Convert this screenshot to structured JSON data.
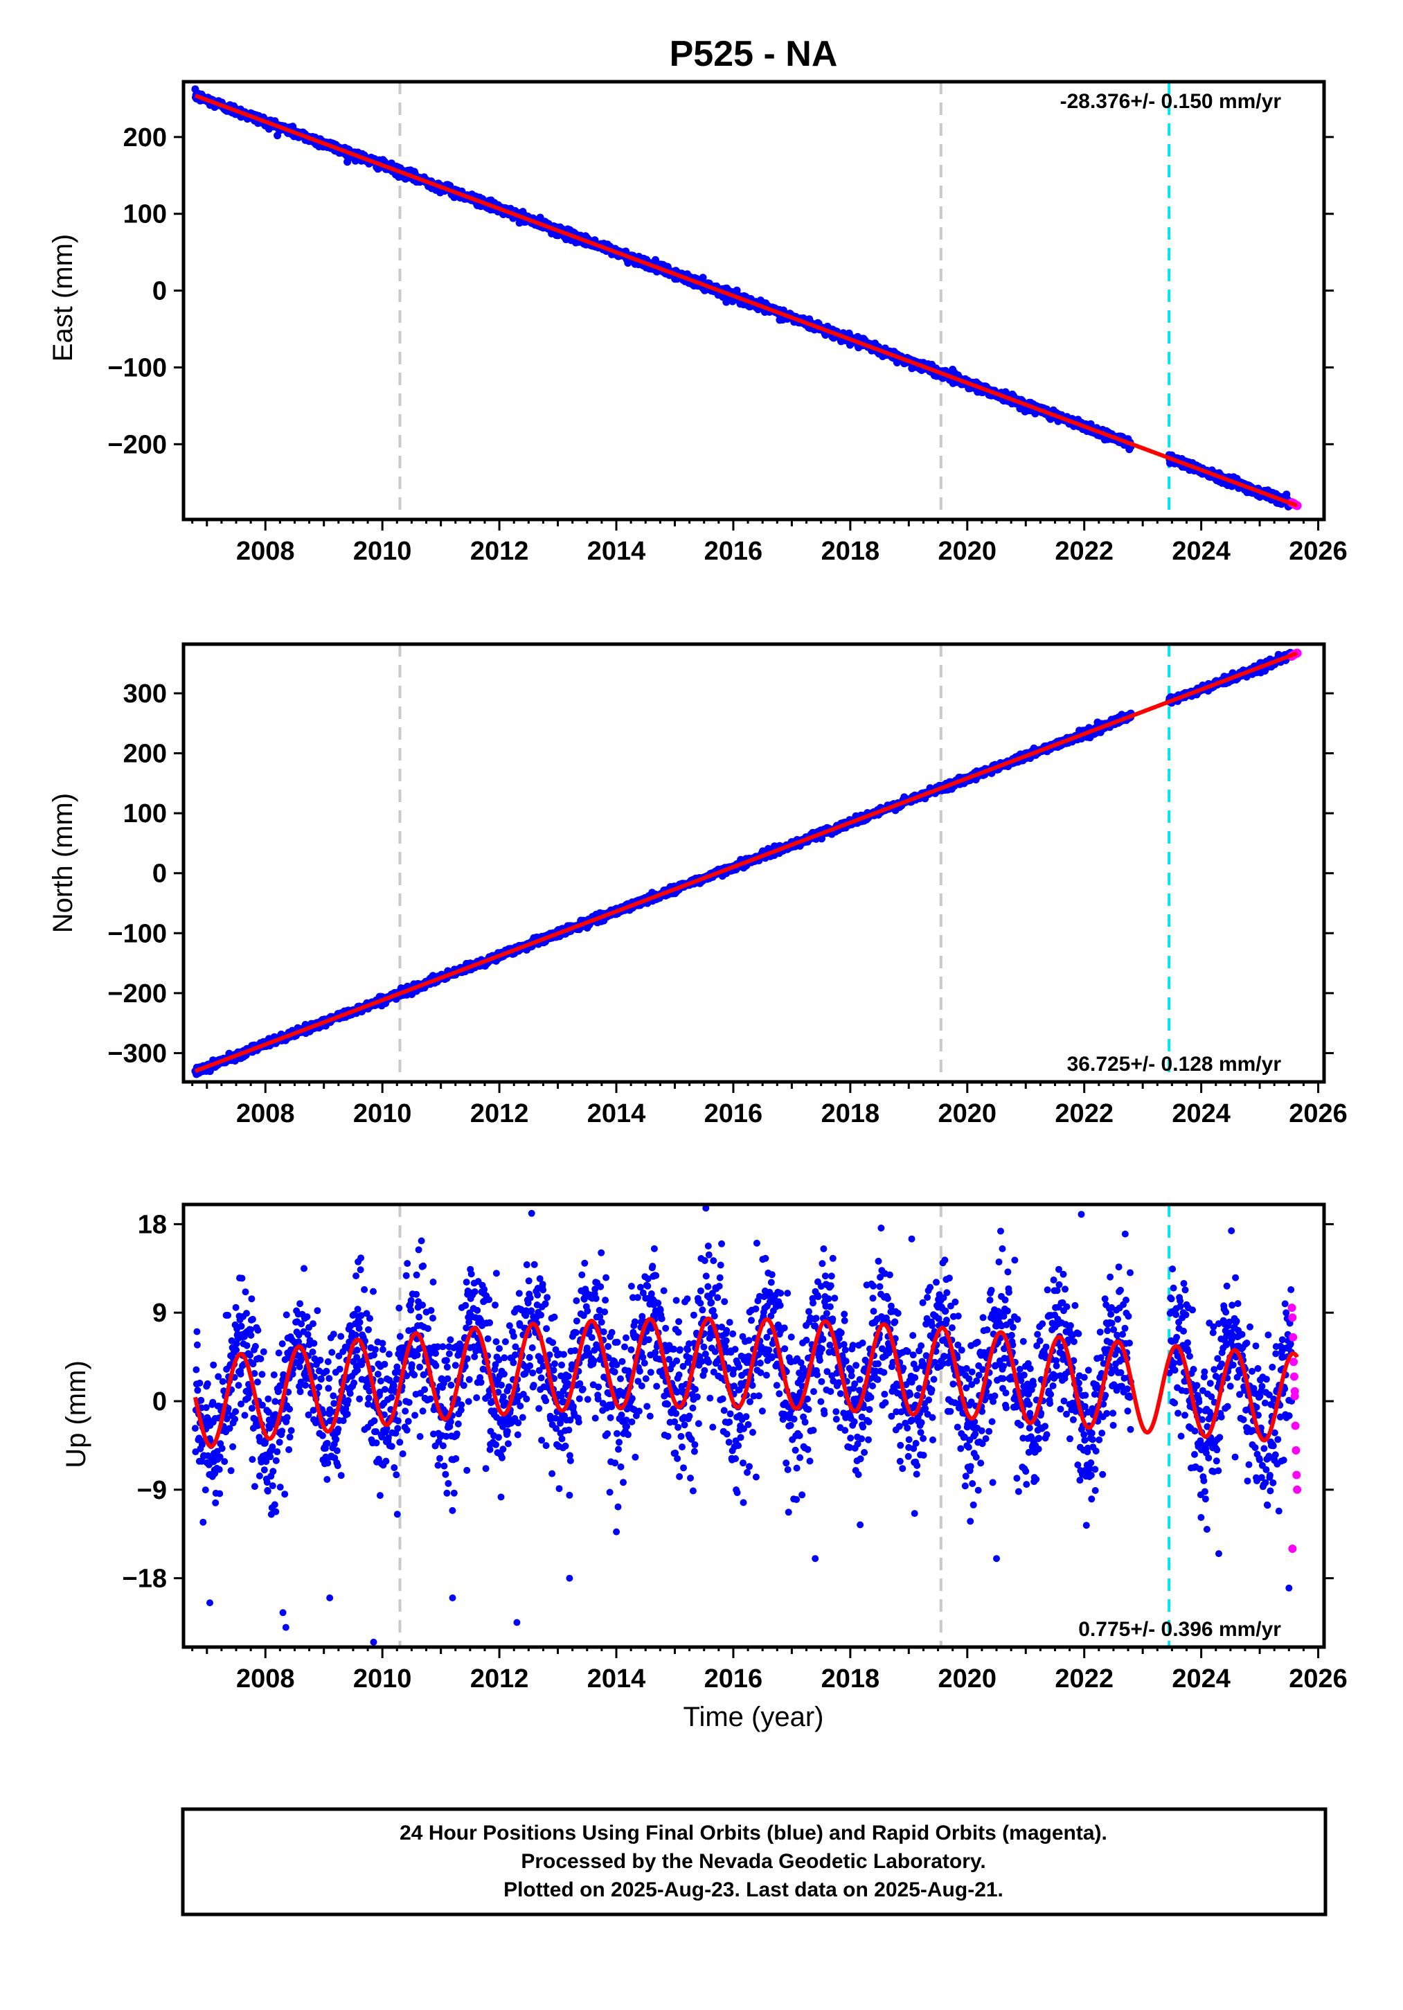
{
  "title": "P525 - NA",
  "colors": {
    "final_orbits": "#0000ff",
    "rapid_orbits": "#ff00ff",
    "model_fit": "#ff0000",
    "equipment_change": "#c8c8c8",
    "earthquake_offset": "#00e5ee",
    "frame": "#000000"
  },
  "footer": {
    "line1": "24 Hour Positions Using Final Orbits (blue) and Rapid Orbits (magenta).",
    "line2": "Processed by the Nevada Geodetic Laboratory.",
    "line3": "Plotted on 2025-Aug-23. Last data on 2025-Aug-21."
  },
  "chart_data": [
    {
      "type": "scatter",
      "component": "east",
      "ylabel": "East (mm)",
      "xlabel": "",
      "rate_text": "-28.376+/- 0.150 mm/yr",
      "rate_position": "top-right",
      "xlim": [
        2006.6,
        2026.1
      ],
      "ylim": [
        -298,
        272
      ],
      "xticks": [
        2008,
        2010,
        2012,
        2014,
        2016,
        2018,
        2020,
        2022,
        2024,
        2026
      ],
      "yticks": [
        -200,
        -100,
        0,
        100,
        200
      ],
      "start": {
        "year": 2006.8,
        "value": 254
      },
      "end": {
        "year": 2025.64,
        "value": -280
      },
      "scatter_mm": 3,
      "data_gap": [
        2022.8,
        2023.45
      ],
      "equipment_changes": [
        2010.3,
        2019.55
      ],
      "earthquake_offsets": [
        2023.45
      ],
      "rapid_orbit_points": [
        [
          2025.55,
          -276
        ],
        [
          2025.58,
          -277
        ],
        [
          2025.61,
          -279
        ],
        [
          2025.64,
          -280
        ]
      ]
    },
    {
      "type": "scatter",
      "component": "north",
      "ylabel": "North (mm)",
      "xlabel": "",
      "rate_text": "36.725+/- 0.128 mm/yr",
      "rate_position": "bottom-right",
      "xlim": [
        2006.6,
        2026.1
      ],
      "ylim": [
        -348,
        382
      ],
      "xticks": [
        2008,
        2010,
        2012,
        2014,
        2016,
        2018,
        2020,
        2022,
        2024,
        2026
      ],
      "yticks": [
        -300,
        -200,
        -100,
        0,
        100,
        200,
        300
      ],
      "start": {
        "year": 2006.8,
        "value": -330
      },
      "end": {
        "year": 2025.64,
        "value": 367
      },
      "scatter_mm": 3,
      "data_gap": [
        2022.8,
        2023.45
      ],
      "equipment_changes": [
        2010.3,
        2019.55
      ],
      "earthquake_offsets": [
        2023.45
      ],
      "rapid_orbit_points": [
        [
          2025.55,
          362
        ],
        [
          2025.58,
          364
        ],
        [
          2025.61,
          366
        ],
        [
          2025.64,
          367
        ]
      ]
    },
    {
      "type": "scatter",
      "component": "up",
      "ylabel": "Up (mm)",
      "xlabel": "Time (year)",
      "rate_text": "0.775+/- 0.396 mm/yr",
      "rate_position": "bottom-right",
      "xlim": [
        2006.6,
        2026.1
      ],
      "ylim": [
        -25,
        20
      ],
      "xticks": [
        2008,
        2010,
        2012,
        2014,
        2016,
        2018,
        2020,
        2022,
        2024,
        2026
      ],
      "yticks": [
        -18,
        -9,
        0,
        9,
        18
      ],
      "start": {
        "year": 2006.8,
        "value": -0.3
      },
      "end": {
        "year": 2025.64,
        "value": 2.5
      },
      "seasonal_amplitude_mm": 4.5,
      "scatter_mm": 3.8,
      "data_gap": [
        2022.8,
        2023.45
      ],
      "equipment_changes": [
        2010.3,
        2019.55
      ],
      "earthquake_offsets": [
        2023.45
      ],
      "outliers": [
        [
          2007.05,
          -20.5
        ],
        [
          2008.3,
          -21.5
        ],
        [
          2008.35,
          -23
        ],
        [
          2009.85,
          -24.5
        ],
        [
          2011.2,
          -20
        ],
        [
          2012.3,
          -22.5
        ],
        [
          2007.6,
          12.5
        ],
        [
          2011.95,
          13
        ],
        [
          2014.65,
          15.5
        ],
        [
          2015.8,
          16
        ],
        [
          2019.05,
          16.5
        ],
        [
          2020.6,
          15.5
        ],
        [
          2021.95,
          19
        ],
        [
          2022.7,
          17
        ],
        [
          2009.1,
          -20
        ],
        [
          2013.2,
          -18
        ],
        [
          2017.4,
          -16
        ],
        [
          2020.5,
          -16
        ],
        [
          2024.3,
          -15.5
        ],
        [
          2025.5,
          -19
        ]
      ],
      "rapid_orbit_points": [
        [
          2025.55,
          9.5
        ],
        [
          2025.56,
          8.5
        ],
        [
          2025.57,
          6.5
        ],
        [
          2025.58,
          4
        ],
        [
          2025.59,
          2.5
        ],
        [
          2025.6,
          1
        ],
        [
          2025.61,
          -2.5
        ],
        [
          2025.62,
          -5
        ],
        [
          2025.63,
          -7.5
        ],
        [
          2025.64,
          -9
        ],
        [
          2025.56,
          -15
        ],
        [
          2025.6,
          0.5
        ]
      ]
    }
  ]
}
